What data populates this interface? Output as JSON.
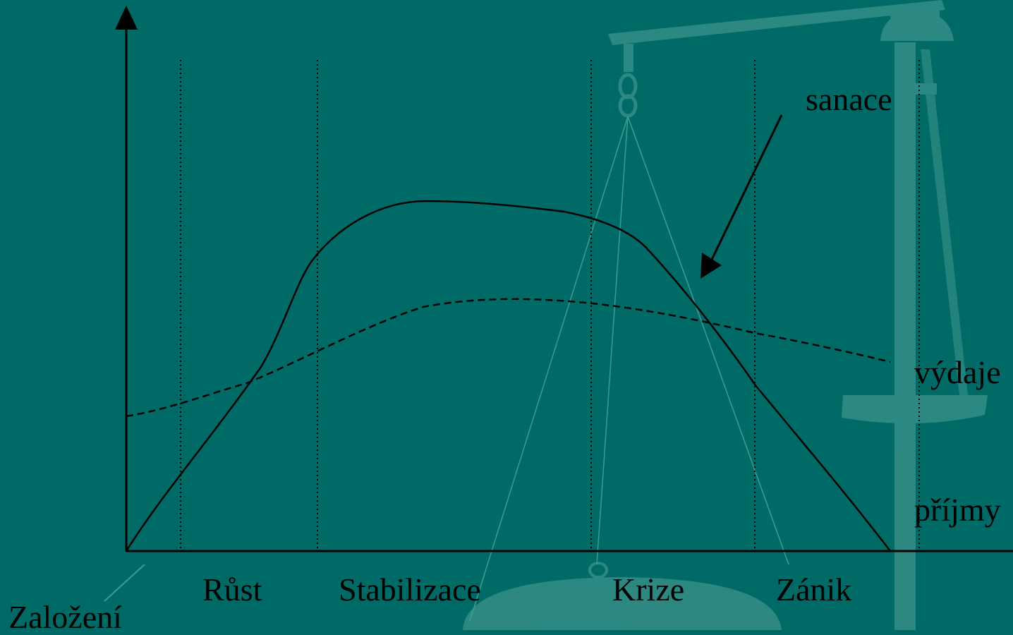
{
  "labels": {
    "sanace": "sanace",
    "vydaje": "výdaje",
    "prijmy": "příjmy",
    "zalozeni": "Založení",
    "phases": [
      "Růst",
      "Stabilizace",
      "Krize",
      "Zánik"
    ]
  },
  "colors": {
    "background": "#006b66",
    "scale_decoration": "#2f8a84",
    "lines": "#000000"
  }
}
